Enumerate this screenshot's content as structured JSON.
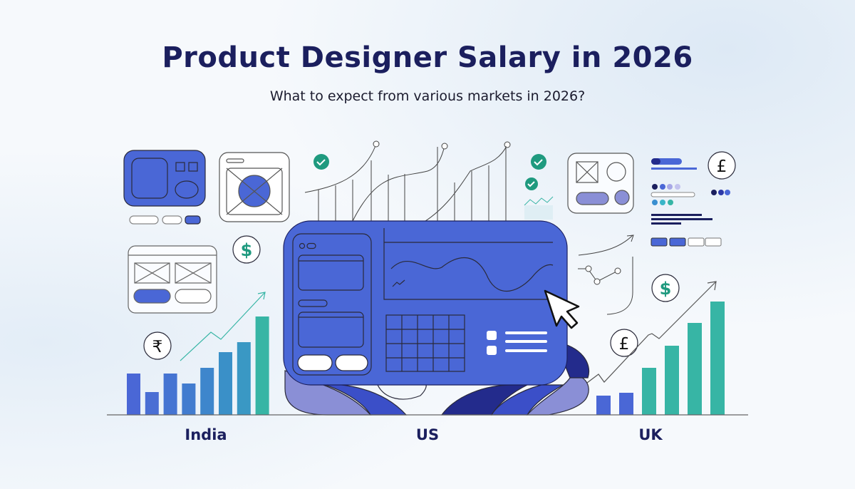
{
  "header": {
    "title": "Product Designer Salary in 2026",
    "subtitle": "What to expect from various markets in 2026?"
  },
  "markets": [
    {
      "label": "India",
      "currency_symbol": "₹"
    },
    {
      "label": "US",
      "currency_symbol": "$"
    },
    {
      "label": "UK",
      "currency_symbol": "£"
    }
  ],
  "illustration": {
    "india_bars": [
      58,
      32,
      58,
      44,
      66,
      88,
      102,
      138
    ],
    "uk_bars": [
      27,
      31,
      66,
      97,
      129,
      159
    ],
    "colors": {
      "primary": "#4A67D6",
      "teal": "#37B5A5",
      "navy": "#1B1F5E",
      "lavender": "#8A8FD6",
      "dark_blue": "#232B8C"
    }
  }
}
